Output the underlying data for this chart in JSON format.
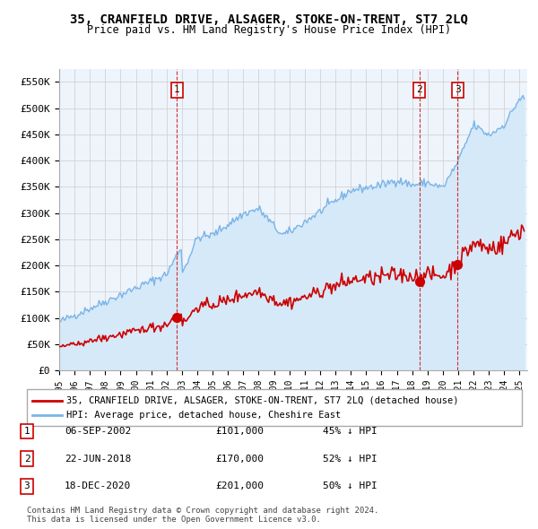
{
  "title": "35, CRANFIELD DRIVE, ALSAGER, STOKE-ON-TRENT, ST7 2LQ",
  "subtitle": "Price paid vs. HM Land Registry's House Price Index (HPI)",
  "xlim": [
    1995.0,
    2025.5
  ],
  "ylim": [
    0,
    575000
  ],
  "yticks": [
    0,
    50000,
    100000,
    150000,
    200000,
    250000,
    300000,
    350000,
    400000,
    450000,
    500000,
    550000
  ],
  "ytick_labels": [
    "£0",
    "£50K",
    "£100K",
    "£150K",
    "£200K",
    "£250K",
    "£300K",
    "£350K",
    "£400K",
    "£450K",
    "£500K",
    "£550K"
  ],
  "xticks": [
    1995,
    1996,
    1997,
    1998,
    1999,
    2000,
    2001,
    2002,
    2003,
    2004,
    2005,
    2006,
    2007,
    2008,
    2009,
    2010,
    2011,
    2012,
    2013,
    2014,
    2015,
    2016,
    2017,
    2018,
    2019,
    2020,
    2021,
    2022,
    2023,
    2024,
    2025
  ],
  "hpi_color": "#7ab4e8",
  "hpi_fill_color": "#d6e9f8",
  "price_color": "#cc0000",
  "transaction_color": "#cc0000",
  "vline_color": "#cc0000",
  "bg_color": "#eef4fb",
  "grid_color": "#cccccc",
  "legend_label_price": "35, CRANFIELD DRIVE, ALSAGER, STOKE-ON-TRENT, ST7 2LQ (detached house)",
  "legend_label_hpi": "HPI: Average price, detached house, Cheshire East",
  "transactions": [
    {
      "date": 2002.68,
      "price": 101000,
      "label": "1"
    },
    {
      "date": 2018.47,
      "price": 170000,
      "label": "2"
    },
    {
      "date": 2020.96,
      "price": 201000,
      "label": "3"
    }
  ],
  "table_rows": [
    {
      "num": "1",
      "date": "06-SEP-2002",
      "price": "£101,000",
      "pct": "45% ↓ HPI"
    },
    {
      "num": "2",
      "date": "22-JUN-2018",
      "price": "£170,000",
      "pct": "52% ↓ HPI"
    },
    {
      "num": "3",
      "date": "18-DEC-2020",
      "price": "£201,000",
      "pct": "50% ↓ HPI"
    }
  ],
  "footnote": "Contains HM Land Registry data © Crown copyright and database right 2024.\nThis data is licensed under the Open Government Licence v3.0.",
  "hpi_num_boxes": [
    {
      "date": 2002.68,
      "label": "1"
    },
    {
      "date": 2018.47,
      "label": "2"
    },
    {
      "date": 2020.96,
      "label": "3"
    }
  ]
}
